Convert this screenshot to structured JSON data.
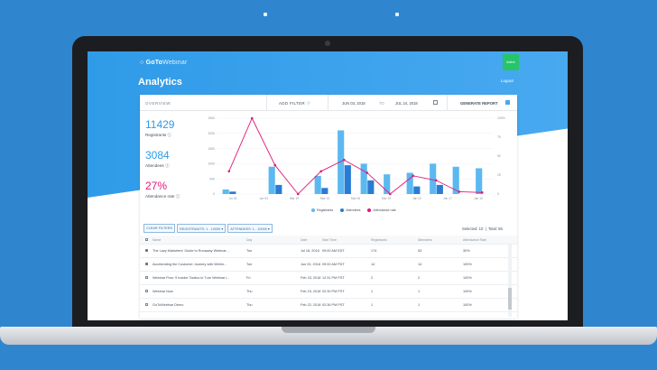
{
  "app": {
    "logo_main": "GoTo",
    "logo_sub": "Webinar",
    "logout": "Logout",
    "page_title": "Analytics",
    "top_badge": "Active"
  },
  "header": {
    "overview": "OVERVIEW",
    "add_filter": "ADD FILTER",
    "date_from": "JUN 03, 2018",
    "date_to_word": "TO",
    "date_to": "JUL 24, 2018",
    "generate_report": "GENERATE REPORT"
  },
  "metrics": {
    "registrants": {
      "value": "11429",
      "label": "Registrants",
      "color": "#2f9be8"
    },
    "attendees": {
      "value": "3084",
      "label": "Attendees",
      "color": "#2f9be8"
    },
    "rate": {
      "value": "27%",
      "label": "Attendance rate",
      "color": "#e0187a"
    }
  },
  "chart_data": {
    "type": "bar",
    "categories": [
      "Jul 18",
      "Jun 03",
      "Mar 19",
      "Mar 13",
      "Mar 07",
      "Mar 06",
      "Mar 19",
      "Mar 13",
      "Jan 22",
      "Jan 17",
      "Jan 17",
      "Jan 15"
    ],
    "x_tick_labels": [
      "Jul 18",
      "Jun 03",
      "Mar 19",
      "Mar 13",
      "Mar 06",
      "Mar 19",
      "Jan 22",
      "Jan 17",
      "Jan 15"
    ],
    "y_left_ticks": [
      "0",
      "500",
      "1000",
      "1500",
      "2000",
      "2500"
    ],
    "y_right_ticks": [
      "0",
      "25",
      "50",
      "75",
      "100%"
    ],
    "ylim_left": [
      0,
      2500
    ],
    "ylim_right": [
      0,
      100
    ],
    "series": [
      {
        "name": "Registrants",
        "values": [
          150,
          0,
          900,
          0,
          600,
          2100,
          1000,
          650,
          700,
          1000,
          900,
          850
        ],
        "color": "#5cb8f0"
      },
      {
        "name": "Attendees",
        "values": [
          80,
          0,
          300,
          0,
          200,
          950,
          450,
          0,
          250,
          300,
          0,
          0
        ],
        "color": "#2a7bd4"
      },
      {
        "name": "Attendance rate",
        "values": [
          30,
          100,
          38,
          0,
          30,
          45,
          28,
          0,
          24,
          18,
          3,
          2
        ],
        "color": "#e0187a"
      }
    ],
    "legend": [
      "Registrants",
      "Attendees",
      "Attendance rate"
    ]
  },
  "filters": {
    "clear": "CLEAR FILTERS",
    "registrants": "REGISTRANTS: 1 - 10000",
    "attendees": "ATTENDEES: 1 - 10000"
  },
  "selection": {
    "selected": "Selected: 10",
    "total": "Total: 55"
  },
  "table": {
    "headers": [
      "Name",
      "Day",
      "Date",
      "Start Time",
      "Registrants",
      "Attendees",
      "Attendance Rate"
    ],
    "rows": [
      {
        "checked": true,
        "name": "The Lazy Marketers' Guide to Runaway Webinar...",
        "day": "Tue",
        "date": "Jul 18, 2018",
        "time": "09:00 AM EDT",
        "reg": "174",
        "att": "53",
        "rate": "30%"
      },
      {
        "checked": true,
        "name": "Accelerating the Customer Journey with Webin...",
        "day": "Tue",
        "date": "Jun 03, 2018",
        "time": "09:00 AM PDT",
        "reg": "14",
        "att": "14",
        "rate": "100%"
      },
      {
        "checked": false,
        "name": "Webinar Pros: 9 Insider Tactics to Turn Webinar I...",
        "day": "Fri",
        "date": "Feb 23, 2018",
        "time": "12:31 PM PST",
        "reg": "2",
        "att": "2",
        "rate": "100%"
      },
      {
        "checked": false,
        "name": "Webinar Now",
        "day": "Thu",
        "date": "Feb 15, 2018",
        "time": "02:30 PM PST",
        "reg": "1",
        "att": "1",
        "rate": "100%"
      },
      {
        "checked": false,
        "name": "GoToWebinar Demo",
        "day": "Thu",
        "date": "Feb 22, 2018",
        "time": "02:36 PM PST",
        "reg": "1",
        "att": "1",
        "rate": "100%"
      }
    ]
  }
}
